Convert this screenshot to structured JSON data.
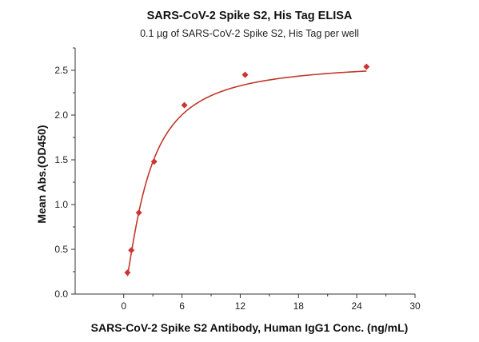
{
  "chart_data": {
    "type": "scatter",
    "title": "SARS-CoV-2 Spike S2, His Tag ELISA",
    "subtitle": "0.1 µg of SARS-CoV-2 Spike S2, His Tag per well",
    "xlabel": "SARS-CoV-2 Spike S2 Antibody, Human IgG1 Conc. (ng/mL)",
    "ylabel": "Mean Abs.(OD450)",
    "xlim": [
      -5,
      30
    ],
    "ylim": [
      0,
      2.75
    ],
    "x_ticks": [
      "0",
      "6",
      "12",
      "18",
      "24",
      "30"
    ],
    "y_ticks": [
      "0.0",
      "0.5",
      "1.0",
      "1.5",
      "2.0",
      "2.5"
    ],
    "grid": false,
    "legend": "none",
    "series": [
      {
        "x": [
          0.39,
          0.78,
          1.56,
          3.13,
          6.25,
          12.5,
          25
        ],
        "y": [
          0.24,
          0.49,
          0.91,
          1.48,
          2.11,
          2.45,
          2.54
        ]
      }
    ],
    "fit_curve": {
      "model": "4PL",
      "bottom": 0.0,
      "top": 2.6,
      "ec50": 2.45,
      "hill": 1.35
    },
    "colors": {
      "marker": "#cc3333",
      "curve": "#c0392b",
      "axis": "#333333"
    }
  }
}
